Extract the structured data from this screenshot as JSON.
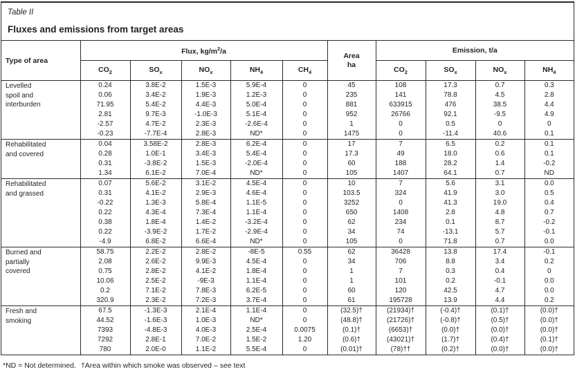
{
  "page": {
    "table_label": "Table II",
    "title": "Fluxes and emissions from target areas",
    "footnote": {
      "part1": "*ND = Not determined.",
      "part2": "†Area within which smoke was observed – see text"
    }
  },
  "colors": {
    "background": "#ffffff",
    "border": "#2a2a2a",
    "text": "#1f1f1f"
  },
  "table": {
    "header": {
      "type_label": "Type of area",
      "flux_group": {
        "pre": "Flux, kg/m",
        "sup": "2",
        "post": "/a"
      },
      "area": {
        "line1": "Area",
        "line2": "ha"
      },
      "emission_group": "Emission, t/a",
      "sub_columns": [
        {
          "main": "CO",
          "sub": "2"
        },
        {
          "main": "SO",
          "sub": "x"
        },
        {
          "main": "NO",
          "sub": "x"
        },
        {
          "main": "NH",
          "sub": "4"
        },
        {
          "main": "CH",
          "sub": "4"
        },
        {
          "main": "CO",
          "sub": "2"
        },
        {
          "main": "SO",
          "sub": "x"
        },
        {
          "main": "NO",
          "sub": "x"
        },
        {
          "main": "NH",
          "sub": "4"
        }
      ]
    },
    "column_keys": [
      "flux-co2",
      "flux-sox",
      "flux-nox",
      "flux-nh4",
      "flux-ch4",
      "area-ha",
      "em-co2",
      "em-sox",
      "em-nox",
      "em-nh4"
    ],
    "sections": [
      {
        "area_type": "Levelled spoil and interburden",
        "label_lines": [
          "Levelled",
          "spoil and",
          "interburden"
        ],
        "rows": [
          [
            "0.24",
            "3.8E-2",
            "1.5E-3",
            "5.9E-4",
            "0",
            "45",
            "108",
            "17.3",
            "0.7",
            "0.3"
          ],
          [
            "0.06",
            "3.4E-2",
            "1.9E-3",
            "1.2E-3",
            "0",
            "235",
            "141",
            "78.8",
            "4.5",
            "2.8"
          ],
          [
            "71.95",
            "5.4E-2",
            "4.4E-3",
            "5.0E-4",
            "0",
            "881",
            "633915",
            "476",
            "38.5",
            "4.4"
          ],
          [
            "2.81",
            "9.7E-3",
            "-1.0E-3",
            "5.1E-4",
            "0",
            "952",
            "26766",
            "92.1",
            "-9.5",
            "4.9"
          ],
          [
            "-2.57",
            "4.7E-2",
            "2.3E-3",
            "-2.6E-4",
            "0",
            "1",
            "0",
            "0.5",
            "0",
            "0"
          ],
          [
            "-0.23",
            "-7.7E-4",
            "2.8E-3",
            "ND*",
            "0",
            "1475",
            "0",
            "-11.4",
            "40.6",
            "0.1"
          ]
        ]
      },
      {
        "area_type": "Rehabilitated and covered",
        "label_lines": [
          "Rehabilitated",
          "and covered"
        ],
        "rows": [
          [
            "0.04",
            "3.58E-2",
            "2.8E-3",
            "6.2E-4",
            "0",
            "17",
            "7",
            "6.5",
            "0.2",
            "0.1"
          ],
          [
            "0.28",
            "1.0E-1",
            "3.4E-3",
            "5.4E-4",
            "0",
            "17.3",
            "49",
            "18.0",
            "0.6",
            "0.1"
          ],
          [
            "0.31",
            "-3.8E-2",
            "1.5E-3",
            "-2.0E-4",
            "0",
            "60",
            "188",
            "28.2",
            "1.4",
            "-0.2"
          ],
          [
            "1.34",
            "6.1E-2",
            "7.0E-4",
            "ND*",
            "0",
            "105",
            "1407",
            "64.1",
            "0.7",
            "ND"
          ]
        ]
      },
      {
        "area_type": "Rehabilitated and grassed",
        "label_lines": [
          "Rehabilitated",
          "and grassed"
        ],
        "rows": [
          [
            "0.07",
            "5.6E-2",
            "3.1E-2",
            "4.5E-4",
            "0",
            "10",
            "7",
            "5.6",
            "3.1",
            "0.0"
          ],
          [
            "0.31",
            "4.1E-2",
            "2.9E-3",
            "4.6E-4",
            "0",
            "103.5",
            "324",
            "41.9",
            "3.0",
            "0.5"
          ],
          [
            "-0.22",
            "1.3E-3",
            "5.8E-4",
            "1.1E-5",
            "0",
            "3252",
            "0",
            "41.3",
            "19.0",
            "0.4"
          ],
          [
            "0.22",
            "4.3E-4",
            "7.3E-4",
            "1.1E-4",
            "0",
            "650",
            "1408",
            "2.8",
            "4.8",
            "0.7"
          ],
          [
            "0.38",
            "1.8E-4",
            "1.4E-2",
            "-3.2E-4",
            "0",
            "62",
            "234",
            "0.1",
            "8.7",
            "-0.2"
          ],
          [
            "0.22",
            "-3.9E-2",
            "1.7E-2",
            "-2.9E-4",
            "0",
            "34",
            "74",
            "-13.1",
            "5.7",
            "-0.1"
          ],
          [
            "-4.9",
            "6.8E-2",
            "6.6E-4",
            "ND*",
            "0",
            "105",
            "0",
            "71.8",
            "0.7",
            "0.0"
          ]
        ]
      },
      {
        "area_type": "Burned and partially covered",
        "label_lines": [
          "Burned and",
          "partially",
          "covered"
        ],
        "rows": [
          [
            "58.75",
            "2.2E-2",
            "2.8E-2",
            "-8E-5",
            "0.55",
            "62",
            "36428",
            "13.8",
            "17.4",
            "-0.1"
          ],
          [
            "2.08",
            "2.6E-2",
            "9.9E-3",
            "4.5E-4",
            "0",
            "34",
            "706",
            "8.8",
            "3.4",
            "0.2"
          ],
          [
            "0.75",
            "2.8E-2",
            "4.1E-2",
            "1.8E-4",
            "0",
            "1",
            "7",
            "0.3",
            "0.4",
            "0"
          ],
          [
            "10.06",
            "2.5E-2",
            "-9E-3",
            "1.1E-4",
            "0",
            "1",
            "101",
            "0.2",
            "-0.1",
            "0.0"
          ],
          [
            "0.2",
            "7.1E-2",
            "7.8E-3",
            "6.2E-5",
            "0",
            "60",
            "120",
            "42.5",
            "4.7",
            "0.0"
          ],
          [
            "320.9",
            "2.3E-2",
            "7.2E-3",
            "3.7E-4",
            "0",
            "61",
            "195728",
            "13.9",
            "4.4",
            "0.2"
          ]
        ]
      },
      {
        "area_type": "Fresh and smoking",
        "label_lines": [
          "Fresh and",
          "smoking"
        ],
        "rows": [
          [
            "67.5",
            "-1.3E-3",
            "2.1E-4",
            "1.1E-4",
            "0",
            "(32.5)†",
            "(21934)†",
            "(-0.4)†",
            "(0.1)†",
            "(0.0)†"
          ],
          [
            "44.52",
            "-1.6E-3",
            "1.0E-3",
            "ND*",
            "0",
            "(48.8)†",
            "(21726)†",
            "(-0.8)†",
            "(0.5)†",
            "(0.0)†"
          ],
          [
            "7393",
            "-4.8E-3",
            "4.0E-3",
            "2.5E-4",
            "0.0075",
            "(0.1)†",
            "(6653)†",
            "(0.0)†",
            "(0.0)†",
            "(0.0)†"
          ],
          [
            "7292",
            "2.8E-1",
            "7.0E-2",
            "1.5E-2",
            "1.20",
            "(0.6)†",
            "(43021)†",
            "(1.7)†",
            "(0.4)†",
            "(0.1)†"
          ],
          [
            "780",
            "2.0E-0",
            "1.1E-2",
            "5.5E-4",
            "0",
            "(0.01)†",
            "(78)††",
            "(0.2)†",
            "(0.0)†",
            "(0.0)†"
          ]
        ]
      }
    ]
  }
}
